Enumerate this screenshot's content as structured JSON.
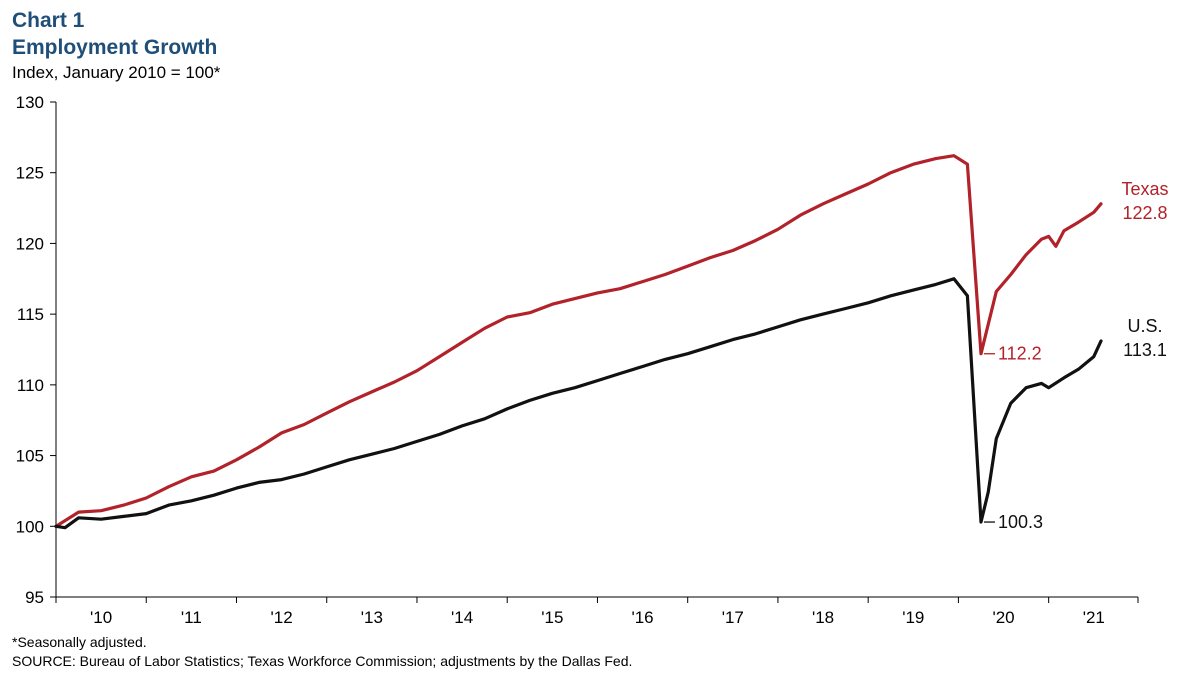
{
  "chart_label": "Chart 1",
  "title": "Employment Growth",
  "subtitle": "Index, January 2010 = 100*",
  "footnote": "*Seasonally adjusted.",
  "source": "SOURCE: Bureau of Labor Statistics; Texas Workforce Commission; adjustments by the Dallas Fed.",
  "chart_data": {
    "type": "line",
    "ylim": [
      95,
      130
    ],
    "yticks": [
      95,
      100,
      105,
      110,
      115,
      120,
      125,
      130
    ],
    "xlim": [
      2010.0,
      2021.99
    ],
    "xtick_labels": [
      "'10",
      "'11",
      "'12",
      "'13",
      "'14",
      "'15",
      "'16",
      "'17",
      "'18",
      "'19",
      "'20",
      "'21"
    ],
    "grid": false,
    "series": [
      {
        "name": "Texas",
        "color": "#b2222a",
        "end_label": "122.8",
        "points": [
          [
            2010.0,
            100.0
          ],
          [
            2010.25,
            101.0
          ],
          [
            2010.5,
            101.1
          ],
          [
            2010.75,
            101.5
          ],
          [
            2011.0,
            102.0
          ],
          [
            2011.25,
            102.8
          ],
          [
            2011.5,
            103.5
          ],
          [
            2011.75,
            103.9
          ],
          [
            2012.0,
            104.7
          ],
          [
            2012.25,
            105.6
          ],
          [
            2012.5,
            106.6
          ],
          [
            2012.75,
            107.2
          ],
          [
            2013.0,
            108.0
          ],
          [
            2013.25,
            108.8
          ],
          [
            2013.5,
            109.5
          ],
          [
            2013.75,
            110.2
          ],
          [
            2014.0,
            111.0
          ],
          [
            2014.25,
            112.0
          ],
          [
            2014.5,
            113.0
          ],
          [
            2014.75,
            114.0
          ],
          [
            2015.0,
            114.8
          ],
          [
            2015.25,
            115.1
          ],
          [
            2015.5,
            115.7
          ],
          [
            2015.75,
            116.1
          ],
          [
            2016.0,
            116.5
          ],
          [
            2016.25,
            116.8
          ],
          [
            2016.5,
            117.3
          ],
          [
            2016.75,
            117.8
          ],
          [
            2017.0,
            118.4
          ],
          [
            2017.25,
            119.0
          ],
          [
            2017.5,
            119.5
          ],
          [
            2017.75,
            120.2
          ],
          [
            2018.0,
            121.0
          ],
          [
            2018.25,
            122.0
          ],
          [
            2018.5,
            122.8
          ],
          [
            2018.75,
            123.5
          ],
          [
            2019.0,
            124.2
          ],
          [
            2019.25,
            125.0
          ],
          [
            2019.5,
            125.6
          ],
          [
            2019.75,
            126.0
          ],
          [
            2019.95,
            126.2
          ],
          [
            2020.1,
            125.6
          ],
          [
            2020.25,
            112.2
          ],
          [
            2020.42,
            116.6
          ],
          [
            2020.58,
            117.8
          ],
          [
            2020.75,
            119.2
          ],
          [
            2020.92,
            120.3
          ],
          [
            2021.0,
            120.5
          ],
          [
            2021.08,
            119.8
          ],
          [
            2021.17,
            120.9
          ],
          [
            2021.33,
            121.5
          ],
          [
            2021.5,
            122.2
          ],
          [
            2021.58,
            122.8
          ]
        ]
      },
      {
        "name": "U.S.",
        "color": "#111111",
        "end_label": "113.1",
        "points": [
          [
            2010.0,
            100.0
          ],
          [
            2010.1,
            99.9
          ],
          [
            2010.25,
            100.6
          ],
          [
            2010.5,
            100.5
          ],
          [
            2010.75,
            100.7
          ],
          [
            2011.0,
            100.9
          ],
          [
            2011.25,
            101.5
          ],
          [
            2011.5,
            101.8
          ],
          [
            2011.75,
            102.2
          ],
          [
            2012.0,
            102.7
          ],
          [
            2012.25,
            103.1
          ],
          [
            2012.5,
            103.3
          ],
          [
            2012.75,
            103.7
          ],
          [
            2013.0,
            104.2
          ],
          [
            2013.25,
            104.7
          ],
          [
            2013.5,
            105.1
          ],
          [
            2013.75,
            105.5
          ],
          [
            2014.0,
            106.0
          ],
          [
            2014.25,
            106.5
          ],
          [
            2014.5,
            107.1
          ],
          [
            2014.75,
            107.6
          ],
          [
            2015.0,
            108.3
          ],
          [
            2015.25,
            108.9
          ],
          [
            2015.5,
            109.4
          ],
          [
            2015.75,
            109.8
          ],
          [
            2016.0,
            110.3
          ],
          [
            2016.25,
            110.8
          ],
          [
            2016.5,
            111.3
          ],
          [
            2016.75,
            111.8
          ],
          [
            2017.0,
            112.2
          ],
          [
            2017.25,
            112.7
          ],
          [
            2017.5,
            113.2
          ],
          [
            2017.75,
            113.6
          ],
          [
            2018.0,
            114.1
          ],
          [
            2018.25,
            114.6
          ],
          [
            2018.5,
            115.0
          ],
          [
            2018.75,
            115.4
          ],
          [
            2019.0,
            115.8
          ],
          [
            2019.25,
            116.3
          ],
          [
            2019.5,
            116.7
          ],
          [
            2019.75,
            117.1
          ],
          [
            2019.95,
            117.5
          ],
          [
            2020.1,
            116.3
          ],
          [
            2020.25,
            100.3
          ],
          [
            2020.33,
            102.4
          ],
          [
            2020.42,
            106.2
          ],
          [
            2020.58,
            108.7
          ],
          [
            2020.75,
            109.8
          ],
          [
            2020.92,
            110.1
          ],
          [
            2021.0,
            109.8
          ],
          [
            2021.17,
            110.5
          ],
          [
            2021.33,
            111.1
          ],
          [
            2021.5,
            112.0
          ],
          [
            2021.58,
            113.1
          ]
        ]
      }
    ],
    "annotations": [
      {
        "text": "112.2",
        "x": 2020.25,
        "y": 112.2,
        "series": "Texas"
      },
      {
        "text": "100.3",
        "x": 2020.25,
        "y": 100.3,
        "series": "U.S."
      }
    ]
  }
}
